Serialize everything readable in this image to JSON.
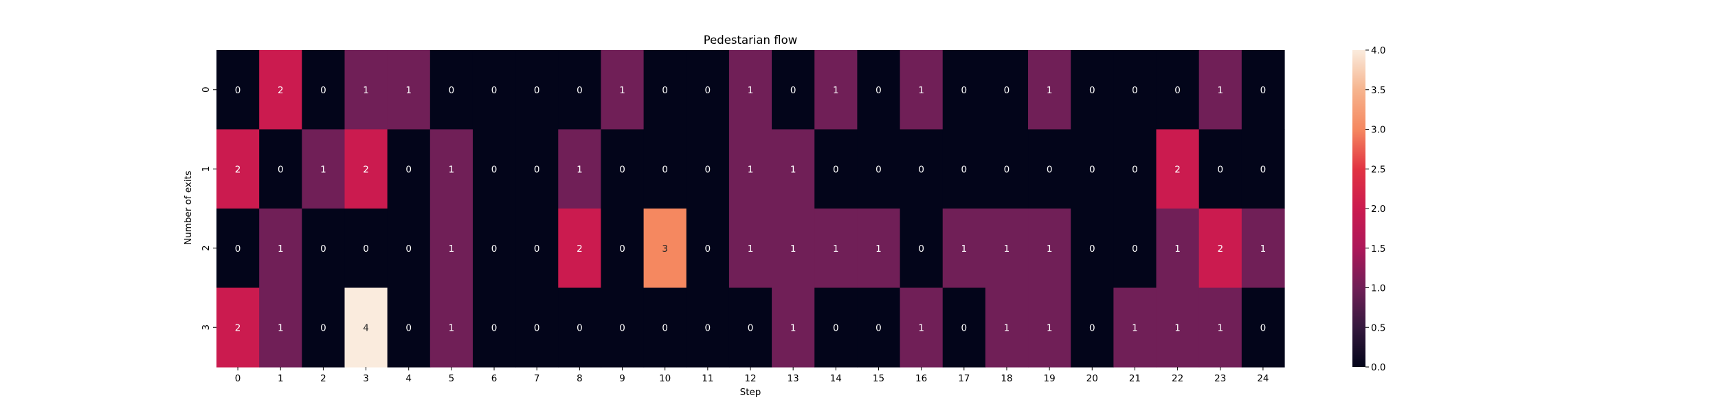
{
  "chart_data": {
    "type": "heatmap",
    "title": "Pedestarian flow",
    "xlabel": "Step",
    "ylabel": "Number of exits",
    "x_categories": [
      "0",
      "1",
      "2",
      "3",
      "4",
      "5",
      "6",
      "7",
      "8",
      "9",
      "10",
      "11",
      "12",
      "13",
      "14",
      "15",
      "16",
      "17",
      "18",
      "19",
      "20",
      "21",
      "22",
      "23",
      "24"
    ],
    "y_categories": [
      "0",
      "1",
      "2",
      "3"
    ],
    "values": [
      [
        0,
        2,
        0,
        1,
        1,
        0,
        0,
        0,
        0,
        1,
        0,
        0,
        1,
        0,
        1,
        0,
        1,
        0,
        0,
        1,
        0,
        0,
        0,
        1,
        0
      ],
      [
        2,
        0,
        1,
        2,
        0,
        1,
        0,
        0,
        1,
        0,
        0,
        0,
        1,
        1,
        0,
        0,
        0,
        0,
        0,
        0,
        0,
        0,
        2,
        0,
        0
      ],
      [
        0,
        1,
        0,
        0,
        0,
        1,
        0,
        0,
        2,
        0,
        3,
        0,
        1,
        1,
        1,
        1,
        0,
        1,
        1,
        1,
        0,
        0,
        1,
        2,
        1
      ],
      [
        2,
        1,
        0,
        4,
        0,
        1,
        0,
        0,
        0,
        0,
        0,
        0,
        0,
        1,
        0,
        0,
        1,
        0,
        1,
        1,
        0,
        1,
        1,
        1,
        0
      ]
    ],
    "colorbar": {
      "range": [
        0,
        4
      ],
      "ticks": [
        "0.0",
        "0.5",
        "1.0",
        "1.5",
        "2.0",
        "2.5",
        "3.0",
        "3.5",
        "4.0"
      ]
    },
    "colormap": {
      "0": "#03051a",
      "1": "#701f57",
      "2": "#cb1b4f",
      "3": "#f58860",
      "4": "#faebdd"
    }
  }
}
